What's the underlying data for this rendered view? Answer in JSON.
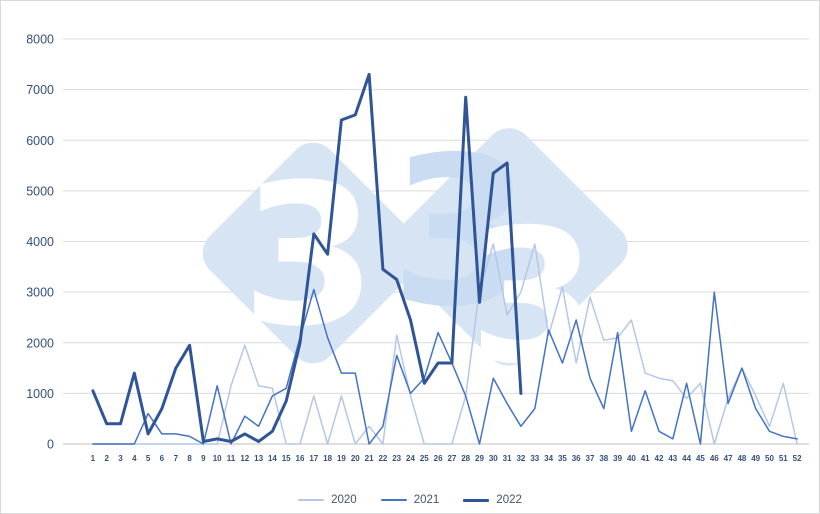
{
  "chart_data": {
    "type": "line",
    "title": "",
    "xlabel": "",
    "ylabel": "",
    "x": [
      1,
      2,
      3,
      4,
      5,
      6,
      7,
      8,
      9,
      10,
      11,
      12,
      13,
      14,
      15,
      16,
      17,
      18,
      19,
      20,
      21,
      22,
      23,
      24,
      25,
      26,
      27,
      28,
      29,
      30,
      31,
      32,
      33,
      34,
      35,
      36,
      37,
      38,
      39,
      40,
      41,
      42,
      43,
      44,
      45,
      46,
      47,
      48,
      49,
      50,
      51,
      52
    ],
    "ylim": [
      0,
      8000
    ],
    "yticks": [
      0,
      1000,
      2000,
      3000,
      4000,
      5000,
      6000,
      7000,
      8000
    ],
    "grid": true,
    "legend_position": "bottom",
    "series": [
      {
        "name": "2020",
        "color": "#b4c7e7",
        "width": 1.5,
        "values": [
          0,
          0,
          0,
          0,
          0,
          0,
          0,
          0,
          0,
          0,
          1150,
          1950,
          1150,
          1100,
          0,
          0,
          950,
          0,
          950,
          0,
          350,
          0,
          2150,
          950,
          0,
          0,
          0,
          950,
          3050,
          3950,
          2550,
          3000,
          3950,
          2150,
          3100,
          1600,
          2900,
          2050,
          2100,
          2450,
          1400,
          1300,
          1250,
          900,
          1200,
          0,
          900,
          1500,
          950,
          350,
          1200,
          0
        ]
      },
      {
        "name": "2021",
        "color": "#4472c4",
        "width": 1.5,
        "values": [
          0,
          0,
          0,
          0,
          600,
          200,
          200,
          150,
          0,
          1150,
          0,
          550,
          350,
          950,
          1100,
          2100,
          3050,
          2100,
          1400,
          1400,
          0,
          350,
          1750,
          1000,
          1300,
          2200,
          1600,
          950,
          0,
          1300,
          800,
          350,
          700,
          2250,
          1600,
          2450,
          1300,
          700,
          2200,
          250,
          1050,
          250,
          100,
          1200,
          0,
          3000,
          800,
          1500,
          700,
          250,
          150,
          100
        ]
      },
      {
        "name": "2022",
        "color": "#2f5597",
        "width": 3,
        "values": [
          1050,
          400,
          400,
          1400,
          200,
          700,
          1500,
          1950,
          50,
          100,
          50,
          200,
          50,
          250,
          850,
          2000,
          4150,
          3750,
          6400,
          6500,
          7300,
          3450,
          3250,
          2450,
          1200,
          1600,
          1600,
          6850,
          2800,
          5350,
          5550,
          1000
        ]
      }
    ]
  },
  "watermark": {
    "glyph": "3",
    "glyph_repeat": 3,
    "diamond_color": "#d7e4f4",
    "glyph_color": "#ffffff",
    "accent_glyph_color": "#c9dcf1"
  },
  "colors": {
    "grid": "#dcdcdc",
    "axis": "#bfbfbf",
    "tick_label": "#33507a",
    "legend_label": "#44546a",
    "background": "#ffffff",
    "border": "#d9d9d9"
  }
}
